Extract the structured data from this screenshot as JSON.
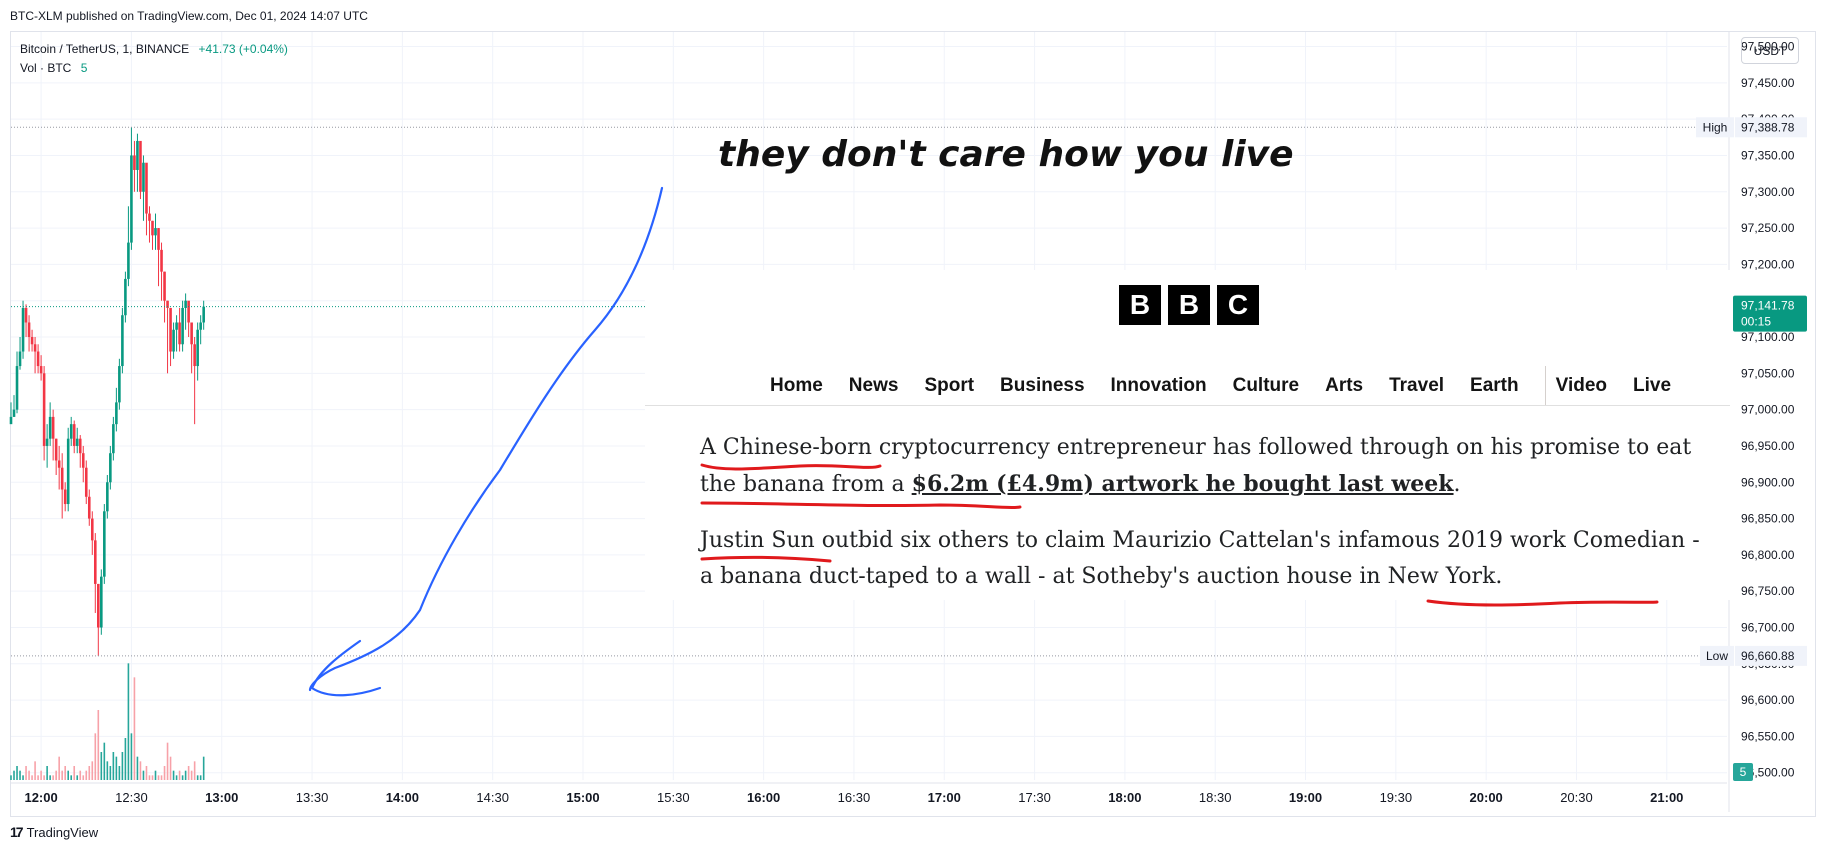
{
  "header": {
    "published": "BTC-XLM published on TradingView.com, Dec 01, 2024 14:07 UTC"
  },
  "legend": {
    "symbol": "Bitcoin / TetherUS, 1, BINANCE",
    "change": "+41.73 (+0.04%)",
    "vol_label": "Vol · BTC",
    "vol_value": "5"
  },
  "currency_button": "USDT",
  "footer_logo": {
    "mark": "17",
    "text": "TradingView"
  },
  "caption": "they don't care how you live",
  "bbc": {
    "logo": [
      "B",
      "B",
      "C"
    ],
    "nav": [
      "Home",
      "News",
      "Sport",
      "Business",
      "Innovation",
      "Culture",
      "Arts",
      "Travel",
      "Earth",
      "Video",
      "Live"
    ],
    "p1_before": "A Chinese-born cryptocurrency entrepreneur has followed through on his promise to eat the banana from a ",
    "p1_link": "$6.2m (£4.9m) artwork he bought last week",
    "p1_after": ".",
    "p2": "Justin Sun outbid six others to claim Maurizio Cattelan's infamous 2019 work Comedian - a banana duct-taped to a wall - at Sotheby's auction house in New York."
  },
  "colors": {
    "up": "#089981",
    "down": "#f23645",
    "vol_up": "#26a69a",
    "vol_down": "#f7a1a8",
    "ink_blue": "#2962ff",
    "ink_red": "#e0191c"
  },
  "chart_data": {
    "type": "candlestick",
    "symbol": "BTC/USDT",
    "x_ticks": [
      "12:00",
      "12:30",
      "13:00",
      "13:30",
      "14:00",
      "14:30",
      "15:00",
      "15:30",
      "16:00",
      "16:30",
      "17:00",
      "17:30",
      "18:00",
      "18:30",
      "19:00",
      "19:30",
      "20:00",
      "20:30",
      "21:00"
    ],
    "bold_x_ticks": [
      "12:00",
      "13:00",
      "14:00",
      "15:00",
      "16:00",
      "17:00",
      "18:00",
      "19:00",
      "20:00",
      "21:00"
    ],
    "y_ticks": [
      "97,500.00",
      "97,450.00",
      "97,400.00",
      "97,350.00",
      "97,300.00",
      "97,250.00",
      "97,200.00",
      "97,150.00",
      "97,100.00",
      "97,050.00",
      "97,000.00",
      "96,950.00",
      "96,900.00",
      "96,850.00",
      "96,800.00",
      "96,750.00",
      "96,700.00",
      "96,650.00",
      "96,600.00",
      "96,550.00",
      "96,500.00"
    ],
    "ylim": [
      96490,
      97520
    ],
    "price_range": [
      96490,
      97520
    ],
    "time_range_minutes": [
      710,
      1280
    ],
    "high": {
      "label": "High",
      "value": "97,388.78"
    },
    "low": {
      "label": "Low",
      "value": "96,660.88"
    },
    "last": {
      "value": "97,141.78",
      "countdown": "00:15"
    },
    "volume_last": "5",
    "first_candle_time_minutes": 710,
    "closes": [
      96990,
      97000,
      97060,
      97080,
      97140,
      97120,
      97100,
      97090,
      97080,
      97060,
      97050,
      96950,
      96960,
      96990,
      96960,
      96930,
      96920,
      96890,
      96870,
      96960,
      96980,
      96950,
      96960,
      96940,
      96920,
      96880,
      96850,
      96820,
      96760,
      96700,
      96770,
      96860,
      96900,
      96940,
      96980,
      97010,
      97060,
      97130,
      97180,
      97230,
      97350,
      97330,
      97370,
      97300,
      97340,
      97270,
      97260,
      97240,
      97250,
      97220,
      97190,
      97150,
      97140,
      97080,
      97110,
      97120,
      97090,
      97140,
      97150,
      97120,
      97090,
      97060,
      97110,
      97120,
      97141.78
    ],
    "highs": [
      97010,
      97020,
      97080,
      97100,
      97150,
      97145,
      97130,
      97110,
      97100,
      97090,
      97075,
      97060,
      96980,
      97010,
      97000,
      96960,
      96950,
      96940,
      96900,
      96975,
      96990,
      96985,
      96975,
      96965,
      96950,
      96930,
      96890,
      96860,
      96830,
      96760,
      96780,
      96870,
      96910,
      96950,
      96990,
      97030,
      97070,
      97140,
      97190,
      97280,
      97388.78,
      97370,
      97380,
      97360,
      97350,
      97300,
      97280,
      97260,
      97270,
      97250,
      97230,
      97190,
      97150,
      97140,
      97120,
      97130,
      97140,
      97150,
      97160,
      97140,
      97120,
      97100,
      97120,
      97130,
      97150
    ],
    "lows": [
      96985,
      96990,
      96995,
      97055,
      97070,
      97100,
      97080,
      97080,
      97050,
      97050,
      97040,
      96930,
      96920,
      96950,
      96930,
      96910,
      96890,
      96850,
      96860,
      96860,
      96950,
      96940,
      96940,
      96920,
      96900,
      96870,
      96840,
      96800,
      96720,
      96660.88,
      96690,
      96760,
      96850,
      96890,
      96930,
      96970,
      97000,
      97050,
      97120,
      97170,
      97220,
      97300,
      97300,
      97290,
      97260,
      97240,
      97230,
      97220,
      97220,
      97170,
      97150,
      97120,
      97050,
      97060,
      97070,
      97080,
      97080,
      97080,
      97110,
      97100,
      97050,
      96980,
      97040,
      97090,
      97110
    ],
    "volumes": [
      1,
      2,
      3,
      2,
      1,
      3,
      2,
      1,
      4,
      1,
      2,
      1,
      3,
      1,
      1,
      2,
      5,
      2,
      3,
      2,
      1,
      3,
      1,
      2,
      1,
      2,
      3,
      4,
      10,
      15,
      6,
      8,
      4,
      3,
      6,
      5,
      3,
      6,
      9,
      25,
      10,
      22,
      5,
      4,
      2,
      3,
      1,
      1,
      2,
      1,
      1,
      3,
      8,
      5,
      2,
      1,
      2,
      1,
      2,
      3,
      2,
      4,
      1,
      1,
      5
    ],
    "volume_axis_max": 30
  }
}
